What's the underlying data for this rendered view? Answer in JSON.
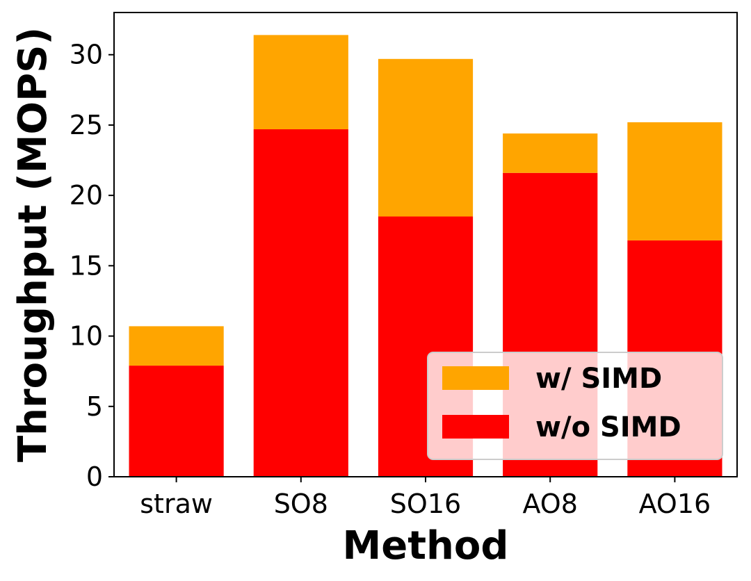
{
  "chart_data": {
    "type": "bar",
    "stacked": true,
    "title": "",
    "xlabel": "Method",
    "ylabel": "Throughput (MOPS)",
    "categories": [
      "straw",
      "SO8",
      "SO16",
      "AO8",
      "AO16"
    ],
    "series": [
      {
        "name": "w/o SIMD",
        "color": "#ff0000",
        "values": [
          7.9,
          24.7,
          18.5,
          21.6,
          16.8
        ]
      },
      {
        "name": "w/ SIMD",
        "color": "#ffa500",
        "values": [
          2.8,
          6.7,
          11.2,
          2.8,
          8.4
        ]
      }
    ],
    "totals": [
      10.7,
      31.4,
      29.7,
      24.4,
      25.2
    ],
    "ylim": [
      0,
      33
    ],
    "yticks": [
      0,
      5,
      10,
      15,
      20,
      25,
      30
    ],
    "grid": false,
    "legend": {
      "position": "lower-right",
      "order": [
        "w/ SIMD",
        "w/o SIMD"
      ]
    }
  }
}
